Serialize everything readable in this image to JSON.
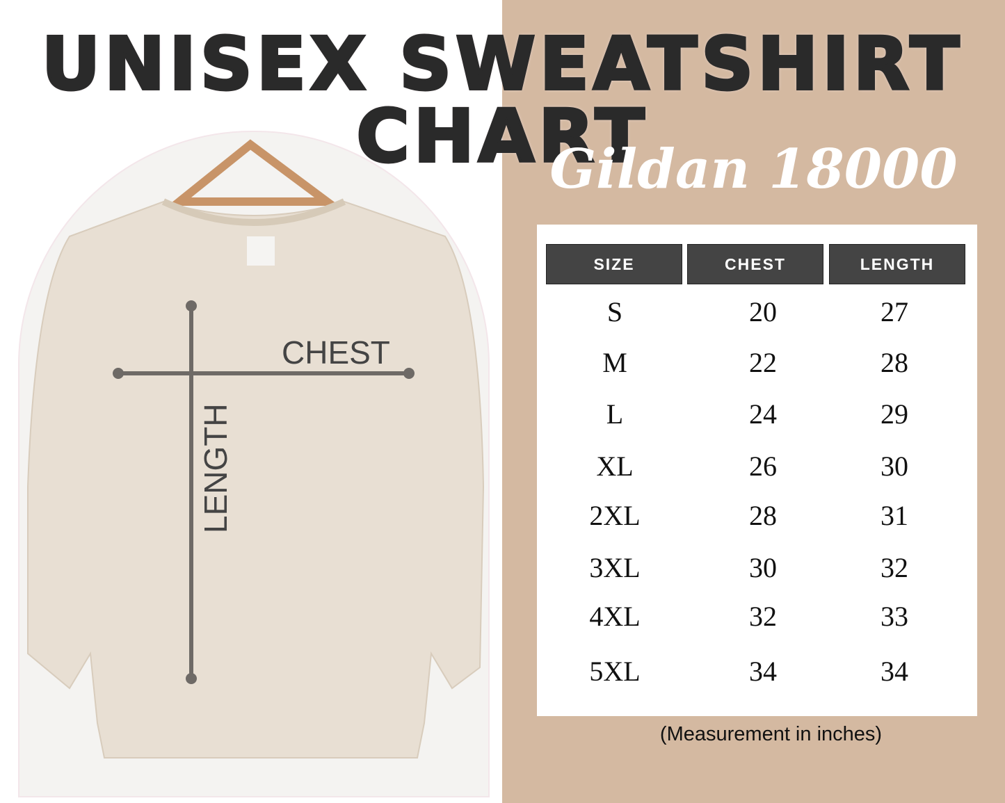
{
  "title": "UNISEX SWEATSHIRT CHART",
  "subtitle": "Gildan 18000",
  "diagram": {
    "chest_label": "CHEST",
    "length_label": "LENGTH"
  },
  "table": {
    "headers": [
      "SIZE",
      "CHEST",
      "LENGTH"
    ],
    "rows": [
      [
        "S",
        "20",
        "27"
      ],
      [
        "M",
        "22",
        "28"
      ],
      [
        "L",
        "24",
        "29"
      ],
      [
        "XL",
        "26",
        "30"
      ],
      [
        "2XL",
        "28",
        "31"
      ],
      [
        "3XL",
        "30",
        "32"
      ],
      [
        "4XL",
        "32",
        "33"
      ],
      [
        "5XL",
        "34",
        "34"
      ]
    ]
  },
  "note": "(Measurement in inches)",
  "colors": {
    "background_right": "#d4b9a1",
    "header_bg": "#444444",
    "sweatshirt": "#e8dfd3"
  }
}
